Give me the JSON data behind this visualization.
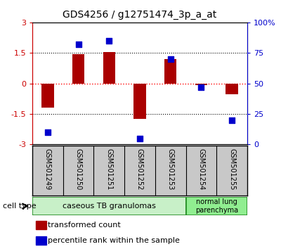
{
  "title": "GDS4256 / g12751474_3p_a_at",
  "samples": [
    "GSM501249",
    "GSM501250",
    "GSM501251",
    "GSM501252",
    "GSM501253",
    "GSM501254",
    "GSM501255"
  ],
  "transformed_count": [
    -1.2,
    1.45,
    1.55,
    -1.75,
    1.2,
    -0.07,
    -0.55
  ],
  "percentile_rank": [
    10,
    82,
    85,
    5,
    70,
    47,
    20
  ],
  "ylim_left": [
    -3,
    3
  ],
  "ylim_right": [
    0,
    100
  ],
  "yticks_left": [
    -3,
    -1.5,
    0,
    1.5,
    3
  ],
  "yticks_right": [
    0,
    25,
    50,
    75,
    100
  ],
  "ytick_labels_right": [
    "0",
    "25",
    "50",
    "75",
    "100%"
  ],
  "bar_color": "#aa0000",
  "dot_color": "#0000cc",
  "bar_width": 0.4,
  "dot_size": 40,
  "legend_items": [
    {
      "label": "transformed count",
      "color": "#aa0000"
    },
    {
      "label": "percentile rank within the sample",
      "color": "#0000cc"
    }
  ],
  "cell_type_label": "cell type",
  "axis_color_left": "#cc0000",
  "axis_color_right": "#0000cc",
  "cell_group1_label": "caseous TB granulomas",
  "cell_group1_color": "#c8f0c8",
  "cell_group1_count": 5,
  "cell_group2_label": "normal lung\nparenchyma",
  "cell_group2_color": "#90ee90",
  "cell_group2_count": 2,
  "sample_bg_color": "#c8c8c8",
  "cell_border_color": "#228B22"
}
